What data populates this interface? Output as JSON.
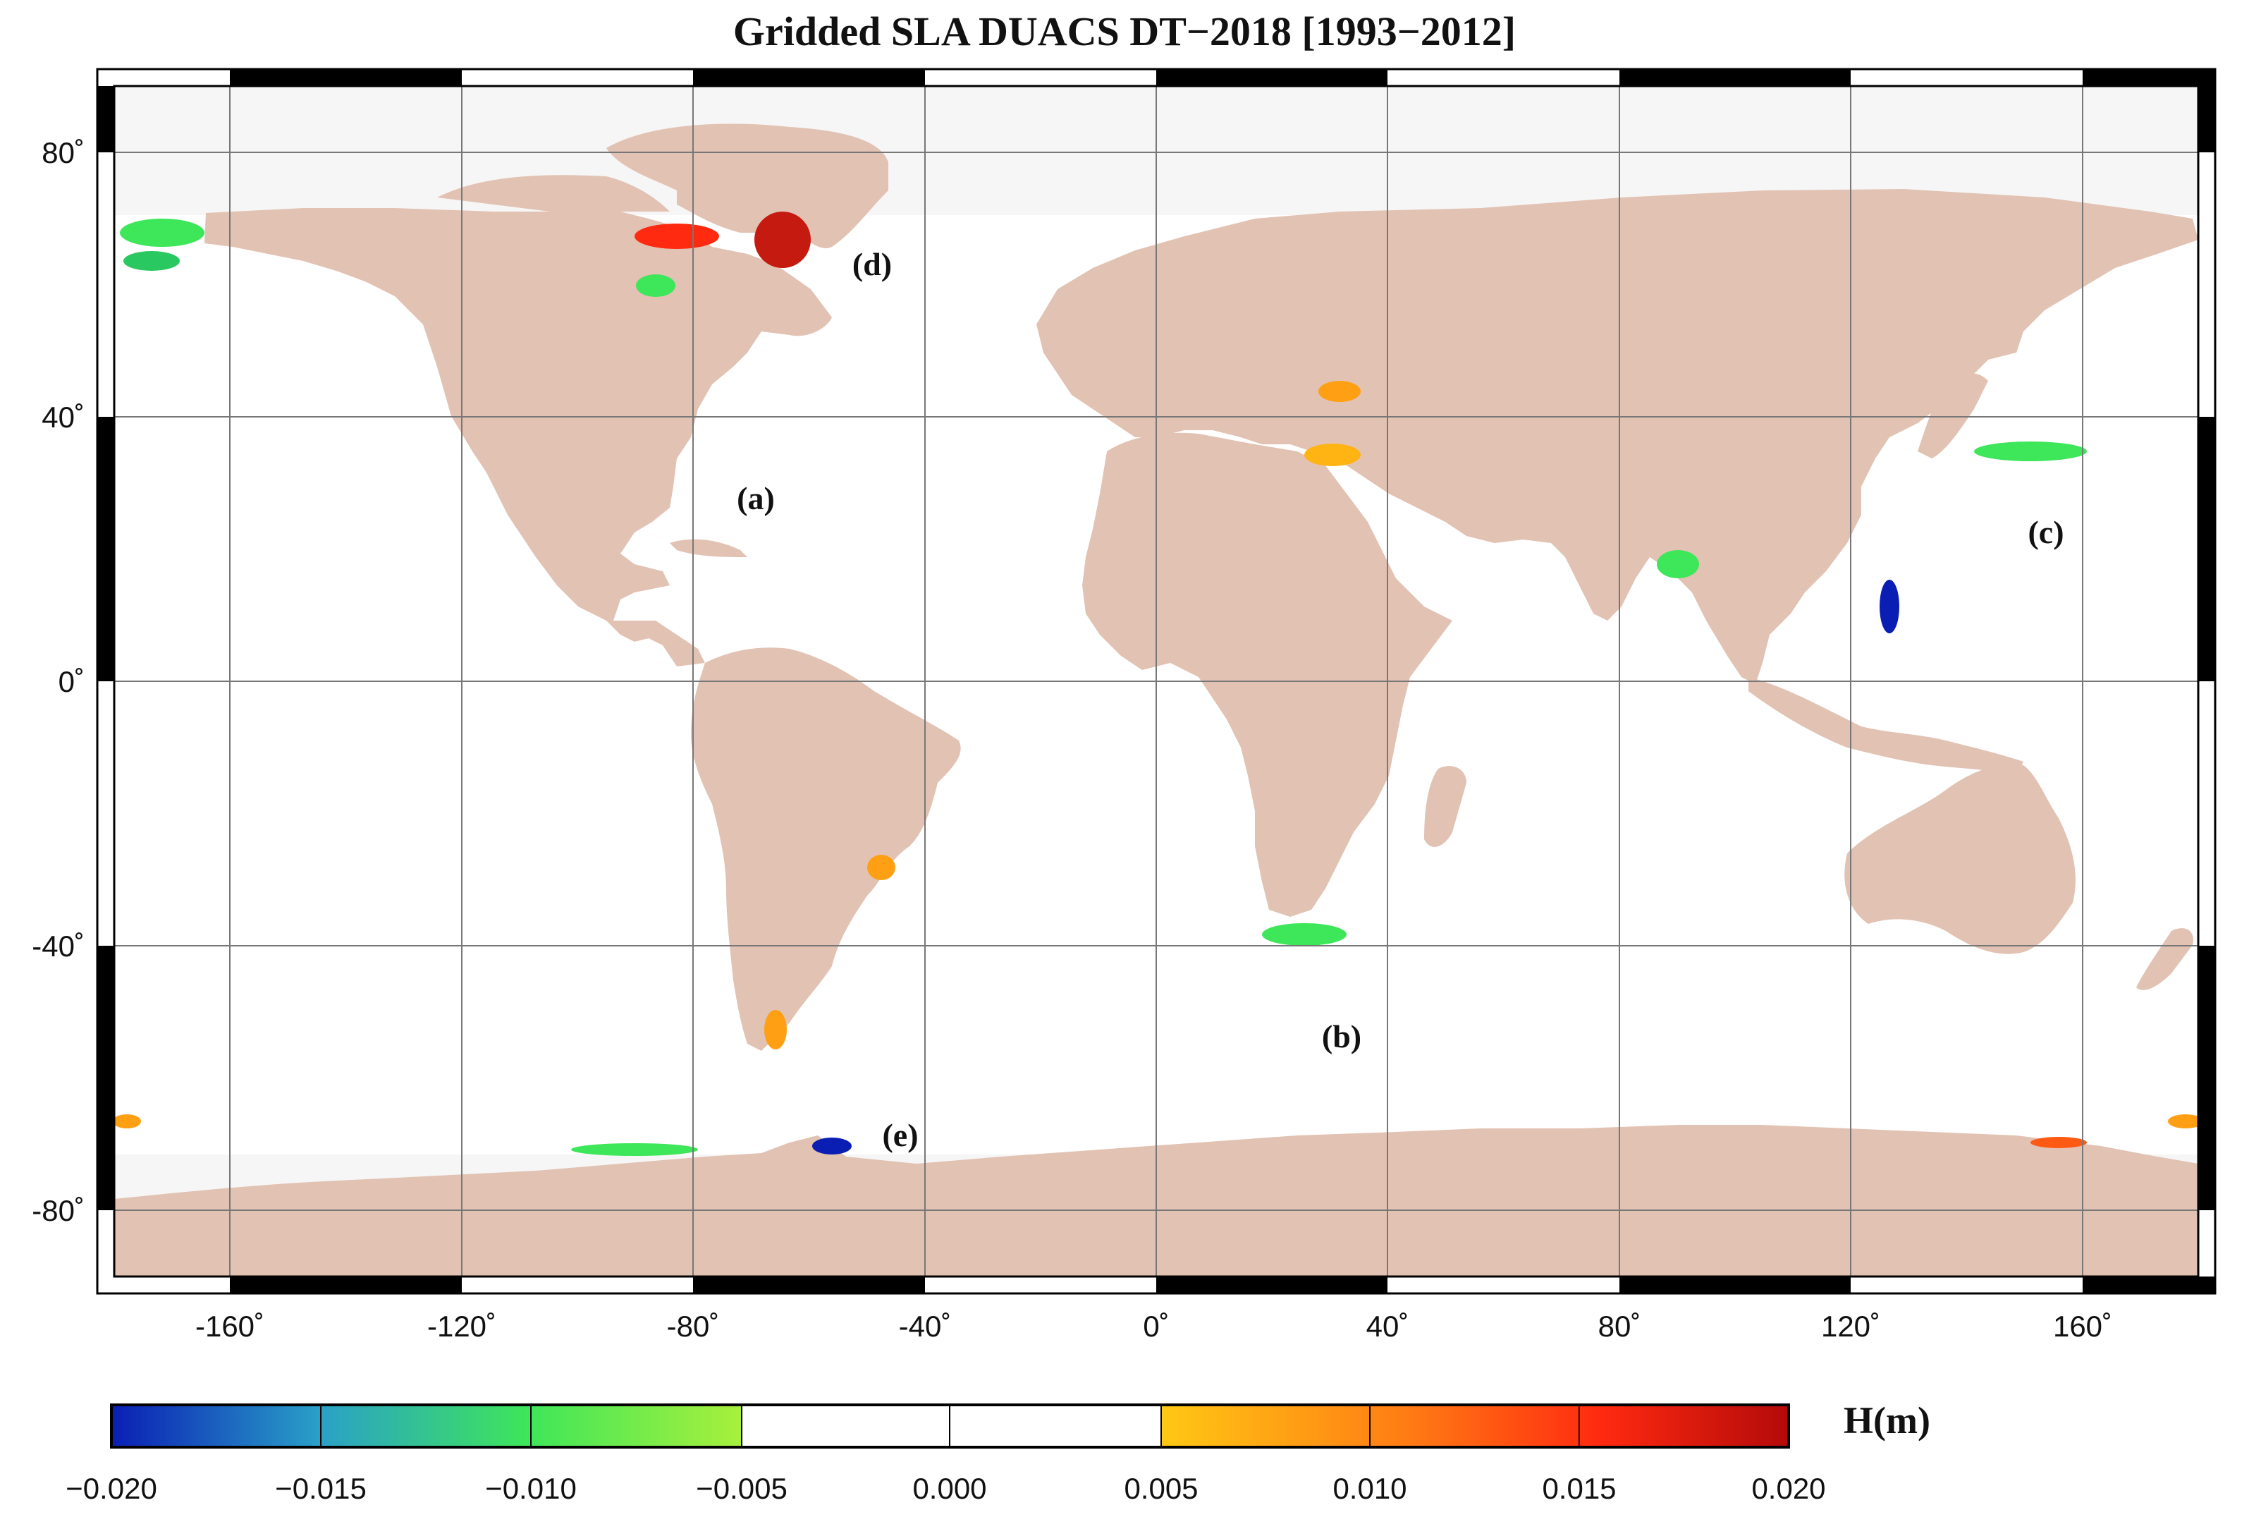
{
  "title": "Gridded SLA DUACS DT−2018 [1993−2012]",
  "map": {
    "projection": "equirectangular",
    "lon_range": [
      -180,
      180
    ],
    "lat_range": [
      -90,
      90
    ],
    "land_color": "#e2c2b3",
    "polar_mask_color": "#f6f6f6",
    "ocean_color": "#ffffff",
    "x_ticks": [
      "-160˚",
      "-120˚",
      "-80˚",
      "-40˚",
      "0˚",
      "40˚",
      "80˚",
      "120˚",
      "160˚"
    ],
    "y_ticks": [
      "80˚",
      "40˚",
      "0˚",
      "-40˚",
      "-80˚"
    ],
    "region_labels": [
      "(a)",
      "(b)",
      "(c)",
      "(d)",
      "(e)"
    ]
  },
  "colorbar": {
    "unit_label": "H(m)",
    "min": -0.02,
    "max": 0.02,
    "ticks": [
      "−0.020",
      "−0.015",
      "−0.010",
      "−0.005",
      "0.000",
      "0.005",
      "0.010",
      "0.015",
      "0.020"
    ],
    "colors": {
      "neg_strong": "#0a1eb4",
      "neg_mid": "#2aa0c8",
      "neg_weak": "#3ee65a",
      "neg_edge": "#a8f03c",
      "zero": "#ffffff",
      "pos_edge": "#ffc814",
      "pos_mid": "#ff5a14",
      "pos_strong": "#b40a0a"
    }
  }
}
